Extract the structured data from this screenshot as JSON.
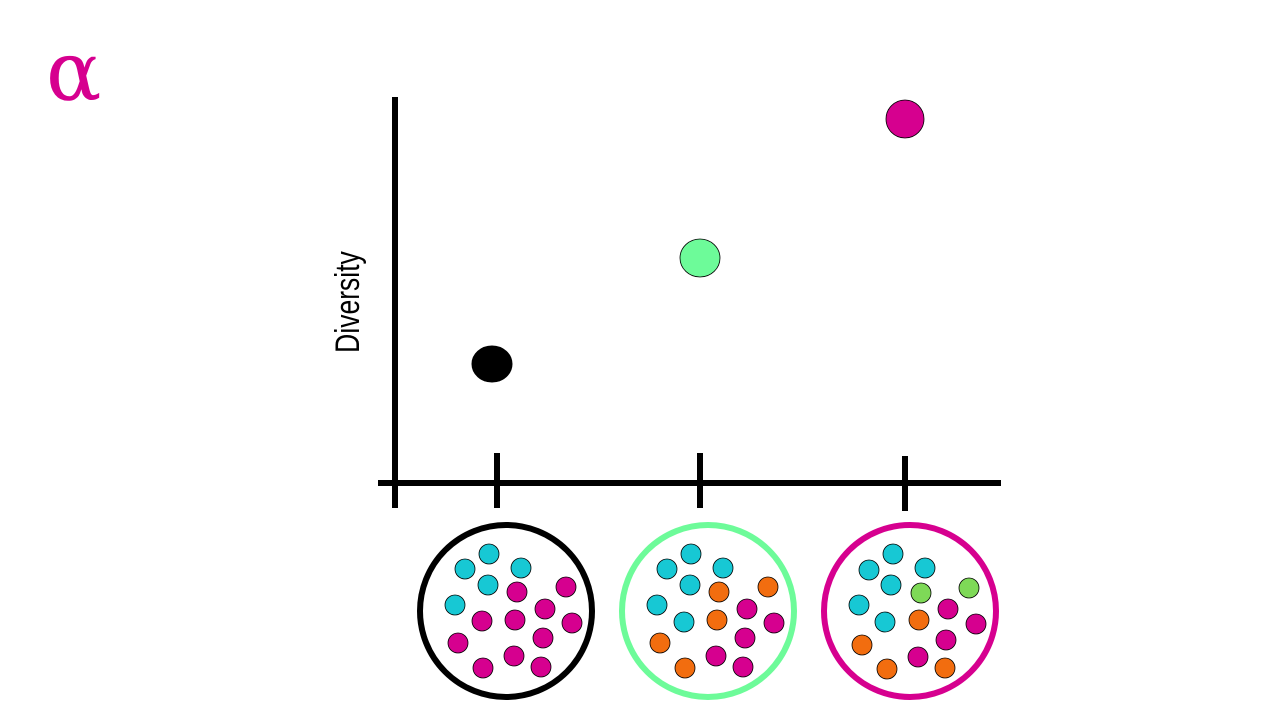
{
  "title": "α",
  "y_axis_label": "Diversity"
}
